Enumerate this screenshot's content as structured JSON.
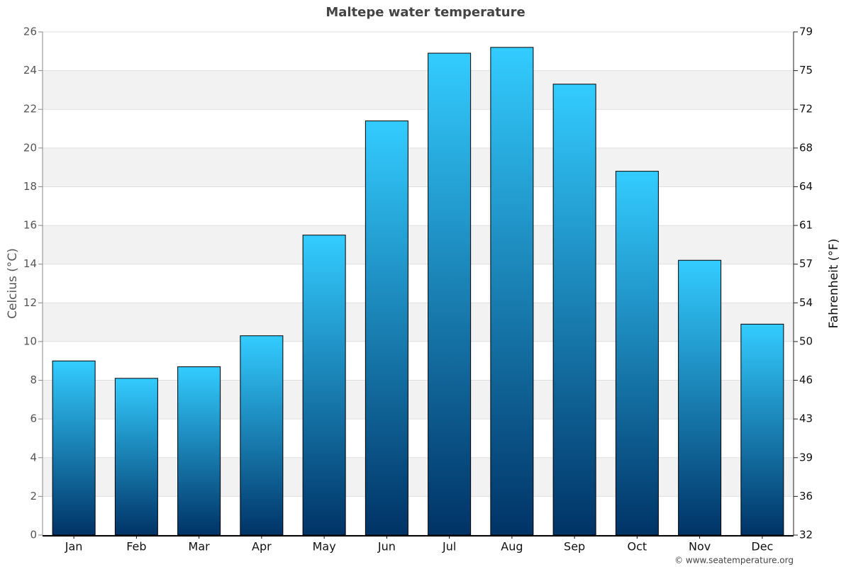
{
  "chart_data": {
    "type": "bar",
    "title": "Maltepe water temperature",
    "categories": [
      "Jan",
      "Feb",
      "Mar",
      "Apr",
      "May",
      "Jun",
      "Jul",
      "Aug",
      "Sep",
      "Oct",
      "Nov",
      "Dec"
    ],
    "values": [
      9.0,
      8.1,
      8.7,
      10.3,
      15.5,
      21.4,
      24.9,
      25.2,
      23.3,
      18.8,
      14.2,
      10.9
    ],
    "color": [
      "#33ccff",
      "#003366"
    ],
    "ylabel": "Celcius (°C)",
    "y2label": "Fahrenheit (°F)",
    "ylim": [
      0,
      26
    ],
    "yticks": [
      0,
      2,
      4,
      6,
      8,
      10,
      12,
      14,
      16,
      18,
      20,
      22,
      24,
      26
    ],
    "y2lim": [
      32,
      78.8
    ],
    "y2ticks": [
      32,
      {
        "value": 35.6,
        "label": "36"
      },
      {
        "value": 39.2,
        "label": "39"
      },
      {
        "value": 42.8,
        "label": "43"
      },
      {
        "value": 46.4,
        "label": "46"
      },
      50,
      {
        "value": 53.6,
        "label": "54"
      },
      {
        "value": 57.2,
        "label": "57"
      },
      {
        "value": 60.8,
        "label": "61"
      },
      {
        "value": 64.4,
        "label": "64"
      },
      68,
      {
        "value": 71.6,
        "label": "72"
      },
      {
        "value": 75.2,
        "label": "75"
      },
      {
        "value": 78.8,
        "label": "79"
      }
    ],
    "grid": true,
    "source": "© www.seatemperature.org"
  }
}
